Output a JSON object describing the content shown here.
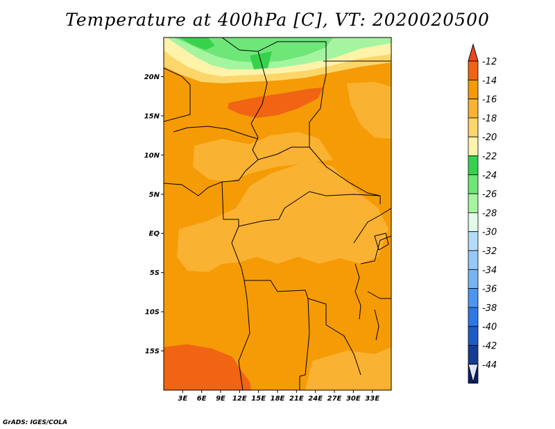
{
  "title": "Temperature at 400hPa [C], VT: 2020020500",
  "credit": "GrADS: IGES/COLA",
  "map": {
    "lon_range": [
      0,
      36
    ],
    "lat_range": [
      -20,
      25
    ],
    "lat_ticks": [
      {
        "label": "20N",
        "value": 20
      },
      {
        "label": "15N",
        "value": 15
      },
      {
        "label": "10N",
        "value": 10
      },
      {
        "label": "5N",
        "value": 5
      },
      {
        "label": "EQ",
        "value": 0
      },
      {
        "label": "5S",
        "value": -5
      },
      {
        "label": "10S",
        "value": -10
      },
      {
        "label": "15S",
        "value": -15
      }
    ],
    "lon_ticks": [
      {
        "label": "3E",
        "value": 3
      },
      {
        "label": "6E",
        "value": 6
      },
      {
        "label": "9E",
        "value": 9
      },
      {
        "label": "12E",
        "value": 12
      },
      {
        "label": "15E",
        "value": 15
      },
      {
        "label": "18E",
        "value": 18
      },
      {
        "label": "21E",
        "value": 21
      },
      {
        "label": "24E",
        "value": 24
      },
      {
        "label": "27E",
        "value": 27
      },
      {
        "label": "30E",
        "value": 30
      },
      {
        "label": "33E",
        "value": 33
      }
    ]
  },
  "colorbar": {
    "levels": [
      {
        "label": "-12",
        "color": "#f06414"
      },
      {
        "label": "-14",
        "color": "#f59b05"
      },
      {
        "label": "-16",
        "color": "#fab232"
      },
      {
        "label": "-18",
        "color": "#fcd66a"
      },
      {
        "label": "-20",
        "color": "#fff3aa"
      },
      {
        "label": "-22",
        "color": "#37d24b"
      },
      {
        "label": "-24",
        "color": "#6ee678"
      },
      {
        "label": "-26",
        "color": "#a5f5a0"
      },
      {
        "label": "-28",
        "color": "#e2fae8"
      },
      {
        "label": "-30",
        "color": "#b4dcfa"
      },
      {
        "label": "-32",
        "color": "#96c8fa"
      },
      {
        "label": "-34",
        "color": "#78b4f5"
      },
      {
        "label": "-36",
        "color": "#4b96f0"
      },
      {
        "label": "-38",
        "color": "#2d78e6"
      },
      {
        "label": "-40",
        "color": "#1e5ac8"
      },
      {
        "label": "-42",
        "color": "#143c96"
      },
      {
        "label": "-44",
        "color": "#0c1e6e"
      }
    ],
    "top_arrow_color": "#f0461e",
    "bottom_arrow_color": "#dce6fa"
  }
}
